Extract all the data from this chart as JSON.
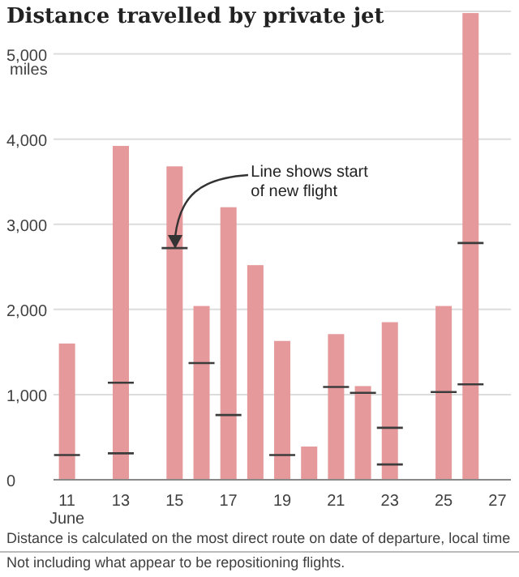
{
  "chart_data": {
    "type": "bar",
    "title": "Distance travelled by private jet",
    "ylabel": "miles",
    "stacked": true,
    "categories": [
      "11\nJune",
      null,
      "13",
      null,
      "15",
      null,
      "17",
      null,
      "19",
      null,
      "21",
      null,
      "23",
      null,
      "25",
      null,
      "27"
    ],
    "series": [
      {
        "color": "#e5999b",
        "values": [
          290,
          null,
          310,
          null,
          2720,
          1370,
          760,
          2520,
          290,
          390,
          1090,
          1020,
          180,
          null,
          1030,
          1120,
          null
        ]
      },
      {
        "color": "#e5999b",
        "values": [
          1310,
          null,
          830,
          null,
          960,
          670,
          2440,
          null,
          1340,
          null,
          620,
          80,
          430,
          null,
          1010,
          1660,
          null
        ]
      },
      {
        "color": "#e5999b",
        "values": [
          null,
          null,
          2780,
          null,
          null,
          null,
          null,
          null,
          null,
          null,
          null,
          null,
          1240,
          null,
          null,
          2700,
          null
        ]
      }
    ],
    "ylim": [
      0,
      5500
    ],
    "yticks": [
      {
        "value": 0,
        "label": "0"
      },
      {
        "value": 1000,
        "label": "1,000"
      },
      {
        "value": 2000,
        "label": "2,000"
      },
      {
        "value": 3000,
        "label": "3,000"
      },
      {
        "value": 4000,
        "label": "4,000"
      },
      {
        "value": 5000,
        "label": "5,000"
      }
    ],
    "grid": "y",
    "annotations": [
      {
        "text": "Line shows start of new flight",
        "x": "15",
        "y": 2720
      },
      "Distance is calculated on the most direct route on date of departure, local time",
      "Not including what appear to be repositioning flights."
    ]
  }
}
